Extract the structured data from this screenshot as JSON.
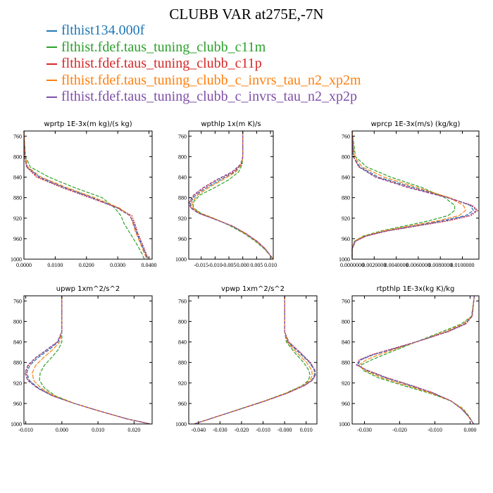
{
  "title": "CLUBB VAR at275E,-7N",
  "legend": [
    {
      "label": "flthist134.000f",
      "color": "#1f77b4"
    },
    {
      "label": "flthist.fdef.taus_tuning_clubb_c11m",
      "color": "#2ca02c"
    },
    {
      "label": "flthist.fdef.taus_tuning_clubb_c11p",
      "color": "#d62728"
    },
    {
      "label": "flthist.fdef.taus_tuning_clubb_c_invrs_tau_n2_xp2m",
      "color": "#ff7f0e"
    },
    {
      "label": "flthist.fdef.taus_tuning_clubb_c_invrs_tau_n2_xp2p",
      "color": "#7f4fa8"
    }
  ],
  "chart_data": [
    {
      "type": "line",
      "title": "wprtp  1E-3x(m kg)/(s kg)",
      "xlim": [
        0,
        0.041
      ],
      "ylim": [
        750,
        1000
      ],
      "yticks": [
        760,
        800,
        840,
        880,
        920,
        960,
        1000
      ],
      "xticks": [
        {
          "v": 0,
          "t": "0.0000"
        },
        {
          "v": 0.01,
          "t": "0.0100"
        },
        {
          "v": 0.02,
          "t": "0.0200"
        },
        {
          "v": 0.03,
          "t": "0.0300"
        },
        {
          "v": 0.04,
          "t": "0.0400"
        }
      ],
      "y": [
        750,
        800,
        820,
        840,
        860,
        880,
        900,
        915,
        930,
        945,
        960,
        975,
        990,
        1000
      ],
      "series": [
        {
          "values": [
            0,
            0.0003,
            0.001,
            0.005,
            0.013,
            0.022,
            0.03,
            0.034,
            0.035,
            0.0358,
            0.0368,
            0.0378,
            0.0388,
            0.0395
          ]
        },
        {
          "values": [
            0,
            0.0005,
            0.002,
            0.008,
            0.016,
            0.025,
            0.029,
            0.031,
            0.032,
            0.0335,
            0.035,
            0.0365,
            0.0378,
            0.0385
          ]
        },
        {
          "values": [
            0,
            0.0002,
            0.0008,
            0.004,
            0.012,
            0.021,
            0.03,
            0.0345,
            0.0355,
            0.0362,
            0.0372,
            0.0382,
            0.0392,
            0.0398
          ]
        },
        {
          "values": [
            0,
            0.0004,
            0.0012,
            0.0055,
            0.0135,
            0.0225,
            0.0305,
            0.034,
            0.0348,
            0.0356,
            0.0366,
            0.0376,
            0.0386,
            0.0393
          ]
        },
        {
          "values": [
            0,
            0.0002,
            0.0009,
            0.0045,
            0.0125,
            0.0215,
            0.0298,
            0.0338,
            0.0352,
            0.036,
            0.037,
            0.038,
            0.039,
            0.0397
          ]
        }
      ]
    },
    {
      "type": "line",
      "title": "wpthlp  1x(m K)/s",
      "xlim": [
        -0.0195,
        0.011
      ],
      "ylim": [
        750,
        1000
      ],
      "yticks": [
        760,
        800,
        840,
        880,
        920,
        960,
        1000
      ],
      "xticks": [
        {
          "v": -0.015,
          "t": "-0.015"
        },
        {
          "v": -0.01,
          "t": "-0.010"
        },
        {
          "v": -0.005,
          "t": "-0.005"
        },
        {
          "v": 0,
          "t": "0.000"
        },
        {
          "v": 0.005,
          "t": "0.005"
        },
        {
          "v": 0.01,
          "t": "0.010"
        }
      ],
      "y": [
        750,
        800,
        815,
        830,
        845,
        860,
        875,
        890,
        900,
        910,
        920,
        935,
        950,
        965,
        980,
        1000
      ],
      "series": [
        {
          "values": [
            0,
            0,
            -0.0005,
            -0.003,
            -0.008,
            -0.013,
            -0.017,
            -0.019,
            -0.0185,
            -0.016,
            -0.011,
            -0.004,
            0.001,
            0.005,
            0.008,
            0.011
          ]
        },
        {
          "values": [
            0,
            0,
            -0.0002,
            -0.0015,
            -0.005,
            -0.01,
            -0.0155,
            -0.018,
            -0.0178,
            -0.0152,
            -0.0105,
            -0.0045,
            0.0005,
            0.0045,
            0.0078,
            0.011
          ]
        },
        {
          "values": [
            0,
            0,
            -0.0006,
            -0.0035,
            -0.009,
            -0.0138,
            -0.0175,
            -0.0192,
            -0.0186,
            -0.016,
            -0.011,
            -0.0038,
            0.0012,
            0.0052,
            0.0082,
            0.011
          ]
        },
        {
          "values": [
            0,
            0,
            -0.0004,
            -0.0025,
            -0.0072,
            -0.0122,
            -0.0163,
            -0.0184,
            -0.018,
            -0.0155,
            -0.0106,
            -0.0041,
            0.0009,
            0.0049,
            0.008,
            0.011
          ]
        },
        {
          "values": [
            0,
            0,
            -0.0008,
            -0.004,
            -0.0095,
            -0.0142,
            -0.0178,
            -0.0195,
            -0.0188,
            -0.0162,
            -0.0112,
            -0.0039,
            0.0011,
            0.0051,
            0.0081,
            0.011
          ]
        }
      ]
    },
    {
      "type": "line",
      "title": "wprcp  1E-3x(m/s) (kg/kg)",
      "xlim": [
        0,
        0.0115
      ],
      "ylim": [
        750,
        1000
      ],
      "yticks": [
        760,
        800,
        840,
        880,
        920,
        960,
        1000
      ],
      "xticks": [
        {
          "v": 0,
          "t": "0.0000000"
        },
        {
          "v": 0.002,
          "t": "0.0020000"
        },
        {
          "v": 0.004,
          "t": "0.0040000"
        },
        {
          "v": 0.006,
          "t": "0.0060000"
        },
        {
          "v": 0.008,
          "t": "0.0080000"
        },
        {
          "v": 0.01,
          "t": "0.0100000"
        }
      ],
      "y": [
        750,
        800,
        820,
        840,
        860,
        880,
        895,
        905,
        915,
        925,
        935,
        945,
        955,
        965,
        980,
        1000
      ],
      "series": [
        {
          "values": [
            0,
            0.0001,
            0.0007,
            0.0024,
            0.0055,
            0.0088,
            0.0107,
            0.011,
            0.0103,
            0.0082,
            0.0056,
            0.003,
            0.0012,
            0.0003,
            0,
            0
          ]
        },
        {
          "values": [
            0,
            0.0003,
            0.0013,
            0.0035,
            0.0063,
            0.0084,
            0.0093,
            0.0093,
            0.0087,
            0.007,
            0.0048,
            0.0026,
            0.001,
            0.0002,
            0,
            0
          ]
        },
        {
          "values": [
            0,
            0.0001,
            0.0006,
            0.0022,
            0.0052,
            0.0087,
            0.0109,
            0.0114,
            0.0108,
            0.0088,
            0.006,
            0.0032,
            0.0013,
            0.0003,
            0,
            0
          ]
        },
        {
          "values": [
            0,
            0.0002,
            0.0009,
            0.0029,
            0.0059,
            0.0088,
            0.0101,
            0.0103,
            0.0097,
            0.0078,
            0.0053,
            0.0028,
            0.0011,
            0.0002,
            0,
            0
          ]
        },
        {
          "values": [
            0,
            0.0001,
            0.0006,
            0.0021,
            0.005,
            0.0086,
            0.0108,
            0.0113,
            0.0106,
            0.0085,
            0.0058,
            0.0031,
            0.0012,
            0.0003,
            0,
            0
          ]
        }
      ]
    },
    {
      "type": "line",
      "title": "upwp  1xm^2/s^2",
      "xlim": [
        -0.0105,
        0.025
      ],
      "ylim": [
        750,
        1000
      ],
      "yticks": [
        760,
        800,
        840,
        880,
        920,
        960,
        1000
      ],
      "xticks": [
        {
          "v": -0.01,
          "t": "-0.010"
        },
        {
          "v": 0,
          "t": "0.000"
        },
        {
          "v": 0.01,
          "t": "0.010"
        },
        {
          "v": 0.02,
          "t": "0.020"
        }
      ],
      "y": [
        750,
        820,
        840,
        855,
        870,
        885,
        900,
        915,
        930,
        945,
        960,
        975,
        990,
        1000
      ],
      "series": [
        {
          "values": [
            0,
            0,
            -0.001,
            -0.0035,
            -0.0065,
            -0.0088,
            -0.0097,
            -0.009,
            -0.0065,
            -0.0025,
            0.0035,
            0.0105,
            0.018,
            0.0245
          ]
        },
        {
          "values": [
            0,
            0,
            0,
            -0.001,
            -0.0028,
            -0.0048,
            -0.006,
            -0.0062,
            -0.0048,
            -0.0018,
            0.0035,
            0.0105,
            0.018,
            0.0245
          ]
        },
        {
          "values": [
            0,
            0,
            -0.0012,
            -0.004,
            -0.007,
            -0.0092,
            -0.01,
            -0.0093,
            -0.0067,
            -0.0026,
            0.0035,
            0.0105,
            0.018,
            0.0245
          ]
        },
        {
          "values": [
            0,
            0,
            -0.0006,
            -0.0025,
            -0.005,
            -0.0072,
            -0.0082,
            -0.0078,
            -0.0058,
            -0.0022,
            0.0035,
            0.0105,
            0.018,
            0.0245
          ]
        },
        {
          "values": [
            0,
            0,
            -0.0013,
            -0.0042,
            -0.0072,
            -0.0094,
            -0.0102,
            -0.0095,
            -0.0068,
            -0.0027,
            0.0035,
            0.0105,
            0.018,
            0.0245
          ]
        }
      ]
    },
    {
      "type": "line",
      "title": "vpwp  1xm^2/s^2",
      "xlim": [
        -0.0445,
        0.015
      ],
      "ylim": [
        750,
        1000
      ],
      "yticks": [
        760,
        800,
        840,
        880,
        920,
        960,
        1000
      ],
      "xticks": [
        {
          "v": -0.04,
          "t": "-0.040"
        },
        {
          "v": -0.03,
          "t": "-0.030"
        },
        {
          "v": -0.02,
          "t": "-0.020"
        },
        {
          "v": -0.01,
          "t": "-0.010"
        },
        {
          "v": 0,
          "t": "-0.000"
        },
        {
          "v": 0.01,
          "t": "0.010"
        }
      ],
      "y": [
        750,
        820,
        840,
        860,
        880,
        895,
        905,
        915,
        925,
        940,
        955,
        970,
        985,
        1000
      ],
      "series": [
        {
          "values": [
            0,
            0,
            0.0015,
            0.0065,
            0.0115,
            0.0138,
            0.0138,
            0.0125,
            0.009,
            0.001,
            -0.009,
            -0.02,
            -0.031,
            -0.042
          ]
        },
        {
          "values": [
            0,
            0,
            0.0008,
            0.0045,
            0.0088,
            0.0112,
            0.0118,
            0.011,
            0.0082,
            0.0005,
            -0.0093,
            -0.0202,
            -0.031,
            -0.042
          ]
        },
        {
          "values": [
            0,
            0,
            0.002,
            0.0072,
            0.012,
            0.014,
            0.0142,
            0.0128,
            0.0093,
            0.0012,
            -0.0088,
            -0.0199,
            -0.031,
            -0.042
          ]
        },
        {
          "values": [
            0,
            0,
            0.0012,
            0.0055,
            0.0102,
            0.0126,
            0.0128,
            0.0118,
            0.0086,
            0.0007,
            -0.0091,
            -0.0201,
            -0.031,
            -0.042
          ]
        },
        {
          "values": [
            0,
            0,
            0.0018,
            0.007,
            0.0118,
            0.0141,
            0.0143,
            0.0129,
            0.0092,
            0.0011,
            -0.0089,
            -0.0199,
            -0.031,
            -0.042
          ]
        }
      ]
    },
    {
      "type": "line",
      "title": "rtpthlp  1E-3x(kg K)/kg",
      "xlim": [
        -0.0335,
        0.0025
      ],
      "ylim": [
        750,
        1000
      ],
      "yticks": [
        760,
        800,
        840,
        880,
        920,
        960,
        1000
      ],
      "xticks": [
        {
          "v": -0.03,
          "t": "-0.030"
        },
        {
          "v": -0.02,
          "t": "-0.020"
        },
        {
          "v": -0.01,
          "t": "-0.010"
        },
        {
          "v": 0,
          "t": "0.000"
        }
      ],
      "y": [
        750,
        790,
        805,
        820,
        835,
        850,
        865,
        875,
        885,
        895,
        910,
        925,
        940,
        955,
        970,
        985,
        1000
      ],
      "series": [
        {
          "values": [
            0.0012,
            0.0005,
            -0.0015,
            -0.0065,
            -0.013,
            -0.02,
            -0.0275,
            -0.031,
            -0.032,
            -0.0295,
            -0.024,
            -0.017,
            -0.0105,
            -0.0055,
            -0.0025,
            -0.0005,
            0.001
          ]
        },
        {
          "values": [
            0.0012,
            0.0004,
            -0.0025,
            -0.008,
            -0.0135,
            -0.019,
            -0.0245,
            -0.028,
            -0.031,
            -0.0305,
            -0.026,
            -0.019,
            -0.0115,
            -0.0055,
            -0.002,
            -0.0003,
            0.001
          ]
        },
        {
          "values": [
            0.0012,
            0.0006,
            -0.0012,
            -0.0062,
            -0.013,
            -0.0205,
            -0.028,
            -0.0315,
            -0.0322,
            -0.0292,
            -0.0235,
            -0.0165,
            -0.0102,
            -0.0054,
            -0.0025,
            -0.0005,
            0.001
          ]
        },
        {
          "values": [
            0.0012,
            0.0005,
            -0.002,
            -0.0072,
            -0.0132,
            -0.0196,
            -0.026,
            -0.0295,
            -0.0315,
            -0.03,
            -0.025,
            -0.018,
            -0.011,
            -0.0055,
            -0.0022,
            -0.0004,
            0.001
          ]
        },
        {
          "values": [
            0.0012,
            0.0006,
            -0.0014,
            -0.0064,
            -0.0131,
            -0.0202,
            -0.0278,
            -0.0313,
            -0.0323,
            -0.0293,
            -0.0237,
            -0.0167,
            -0.0103,
            -0.0055,
            -0.0025,
            -0.0005,
            0.001
          ]
        }
      ]
    }
  ]
}
